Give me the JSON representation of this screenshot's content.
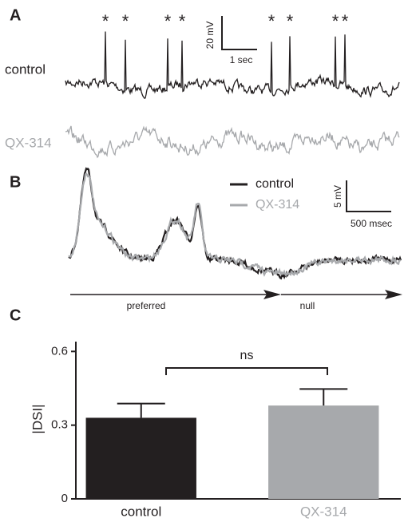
{
  "panels": {
    "a": {
      "label": "A",
      "asterisks": [
        "*",
        "*",
        "*",
        "*",
        "*",
        "*",
        "*",
        "*"
      ],
      "scale_y": "20 mV",
      "scale_x": "1 sec",
      "trace_labels": [
        "control",
        "QX-314"
      ]
    },
    "b": {
      "label": "B",
      "legend": [
        "control",
        "QX-314"
      ],
      "scale_y": "5 mV",
      "scale_x": "500 msec",
      "directions": [
        "preferred",
        "null"
      ]
    },
    "c": {
      "label": "C"
    }
  },
  "chart_data": {
    "type": "bar",
    "ylabel": "|DSI|",
    "annotation": "ns",
    "categories": [
      "control",
      "QX-314"
    ],
    "values": [
      0.33,
      0.38
    ],
    "errors": [
      0.058,
      0.067
    ],
    "colors": [
      "#231f20",
      "#a7a9ac"
    ],
    "ylim": [
      0,
      0.64
    ],
    "yticks": [
      0,
      0.3,
      0.6
    ]
  }
}
